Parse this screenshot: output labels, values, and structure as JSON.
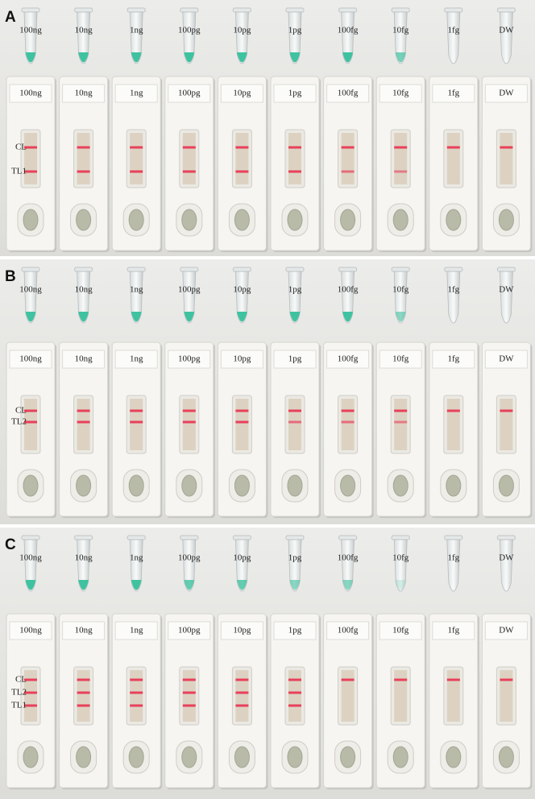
{
  "panels": [
    {
      "label": "A",
      "tubes": [
        "100ng",
        "10ng",
        "1ng",
        "100pg",
        "10pg",
        "1pg",
        "100fg",
        "10fg",
        "1fg",
        "DW"
      ],
      "strips": [
        "100ng",
        "10ng",
        "1ng",
        "100pg",
        "10pg",
        "1pg",
        "100fg",
        "10fg",
        "1fg",
        "DW"
      ],
      "lines": [
        "CL",
        "TL1"
      ]
    },
    {
      "label": "B",
      "tubes": [
        "100ng",
        "10ng",
        "1ng",
        "100pg",
        "10pg",
        "1pg",
        "100fg",
        "10fg",
        "1fg",
        "DW"
      ],
      "strips": [
        "100ng",
        "10ng",
        "1ng",
        "100pg",
        "10pg",
        "1pg",
        "100fg",
        "10fg",
        "1fg",
        "DW"
      ],
      "lines": [
        "CL",
        "TL2"
      ]
    },
    {
      "label": "C",
      "tubes": [
        "100ng",
        "10ng",
        "1ng",
        "100pg",
        "10pg",
        "1pg",
        "100fg",
        "10fg",
        "1fg",
        "DW"
      ],
      "strips": [
        "100ng",
        "10ng",
        "1ng",
        "100pg",
        "10pg",
        "1pg",
        "100fg",
        "10fg",
        "1fg",
        "DW"
      ],
      "lines": [
        "CL",
        "TL2",
        "TL1"
      ]
    }
  ]
}
